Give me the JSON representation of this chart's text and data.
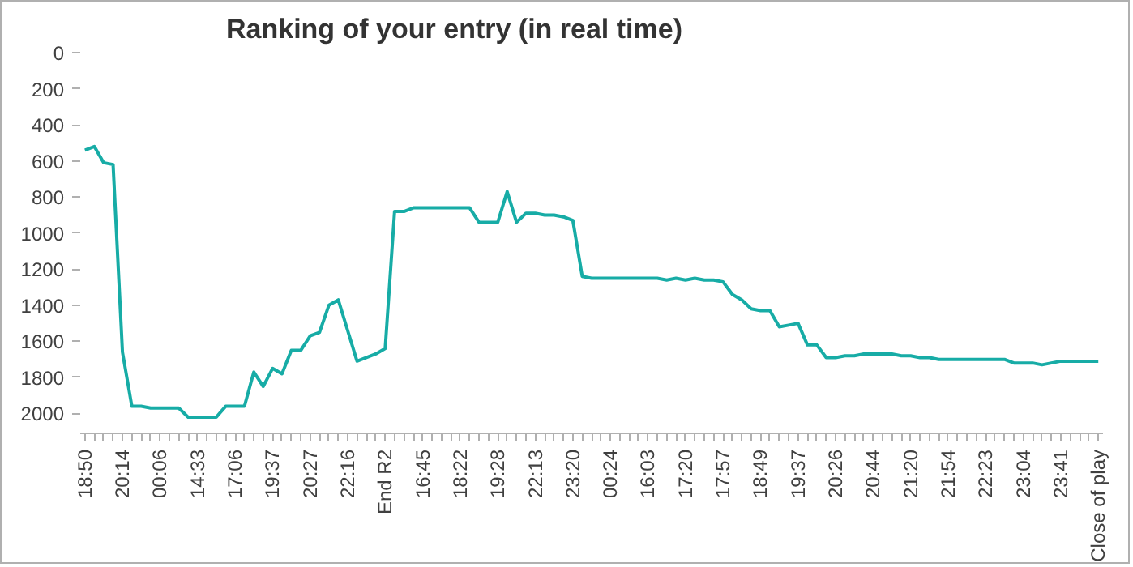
{
  "chart_data": {
    "type": "line",
    "title": "Ranking of your entry (in real time)",
    "categories": [
      "18:50",
      null,
      null,
      null,
      "20:14",
      null,
      null,
      null,
      "00:06",
      null,
      null,
      null,
      "14:33",
      null,
      null,
      null,
      "17:06",
      null,
      null,
      null,
      "19:37",
      null,
      null,
      null,
      "20:27",
      null,
      null,
      null,
      "22:16",
      null,
      null,
      null,
      "End R2",
      null,
      null,
      null,
      "16:45",
      null,
      null,
      null,
      "18:22",
      null,
      null,
      null,
      "19:28",
      null,
      null,
      null,
      "22:13",
      null,
      null,
      null,
      "23:20",
      null,
      null,
      null,
      "00:24",
      null,
      null,
      null,
      "16:03",
      null,
      null,
      null,
      "17:20",
      null,
      null,
      null,
      "17:57",
      null,
      null,
      null,
      "18:49",
      null,
      null,
      null,
      "19:37",
      null,
      null,
      null,
      "20:26",
      null,
      null,
      null,
      "20:44",
      null,
      null,
      null,
      "21:20",
      null,
      null,
      null,
      "21:54",
      null,
      null,
      null,
      "22:23",
      null,
      null,
      null,
      "23:04",
      null,
      null,
      null,
      "23:41",
      null,
      null,
      null,
      "Close of play"
    ],
    "series": [
      {
        "color": "#17aca6",
        "values": [
          540,
          520,
          610,
          620,
          1660,
          1960,
          1960,
          1970,
          1970,
          1970,
          1970,
          2020,
          2020,
          2020,
          2020,
          1960,
          1960,
          1960,
          1770,
          1850,
          1750,
          1780,
          1650,
          1650,
          1570,
          1550,
          1400,
          1370,
          1540,
          1710,
          1690,
          1670,
          1640,
          880,
          880,
          860,
          860,
          860,
          860,
          860,
          860,
          860,
          940,
          940,
          940,
          770,
          940,
          890,
          890,
          900,
          900,
          910,
          930,
          1240,
          1250,
          1250,
          1250,
          1250,
          1250,
          1250,
          1250,
          1250,
          1260,
          1250,
          1260,
          1250,
          1260,
          1260,
          1270,
          1340,
          1370,
          1420,
          1430,
          1430,
          1520,
          1510,
          1500,
          1620,
          1620,
          1690,
          1690,
          1680,
          1680,
          1670,
          1670,
          1670,
          1670,
          1680,
          1680,
          1690,
          1690,
          1700,
          1700,
          1700,
          1700,
          1700,
          1700,
          1700,
          1700,
          1720,
          1720,
          1720,
          1730,
          1720,
          1710,
          1710,
          1710,
          1710,
          1710
        ]
      }
    ],
    "ylim": [
      2110,
      0
    ],
    "yticks": [
      0,
      200,
      400,
      600,
      800,
      1000,
      1200,
      1400,
      1600,
      1800,
      2000
    ],
    "grid": false,
    "marker": "none",
    "line_style": "solid"
  }
}
